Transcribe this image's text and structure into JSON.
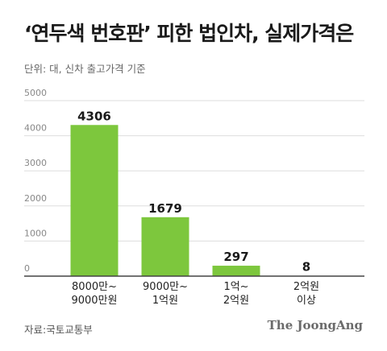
{
  "title": "‘연두색 번호판’ 피한 법인차, 실제가격은",
  "unit_note": "단위: 대, 신차 출고가격 기준",
  "source": "자료:국토교통부",
  "brand": "The JoongAng",
  "colors": {
    "bar": "#7dc73d",
    "grid": "#dddddd",
    "axis": "#444444"
  },
  "chart_data": {
    "type": "bar",
    "categories": [
      [
        "8000만~",
        "9000만원"
      ],
      [
        "9000만~",
        "1억원"
      ],
      [
        "1억~",
        "2억원"
      ],
      [
        "2억원",
        "이상"
      ]
    ],
    "values": [
      4306,
      1679,
      297,
      8
    ],
    "data_labels": [
      "4306",
      "1679",
      "297",
      "8"
    ],
    "ylim": [
      0,
      5000
    ],
    "yticks": [
      0,
      1000,
      2000,
      3000,
      4000,
      5000
    ],
    "grid": true,
    "legend": "none"
  }
}
